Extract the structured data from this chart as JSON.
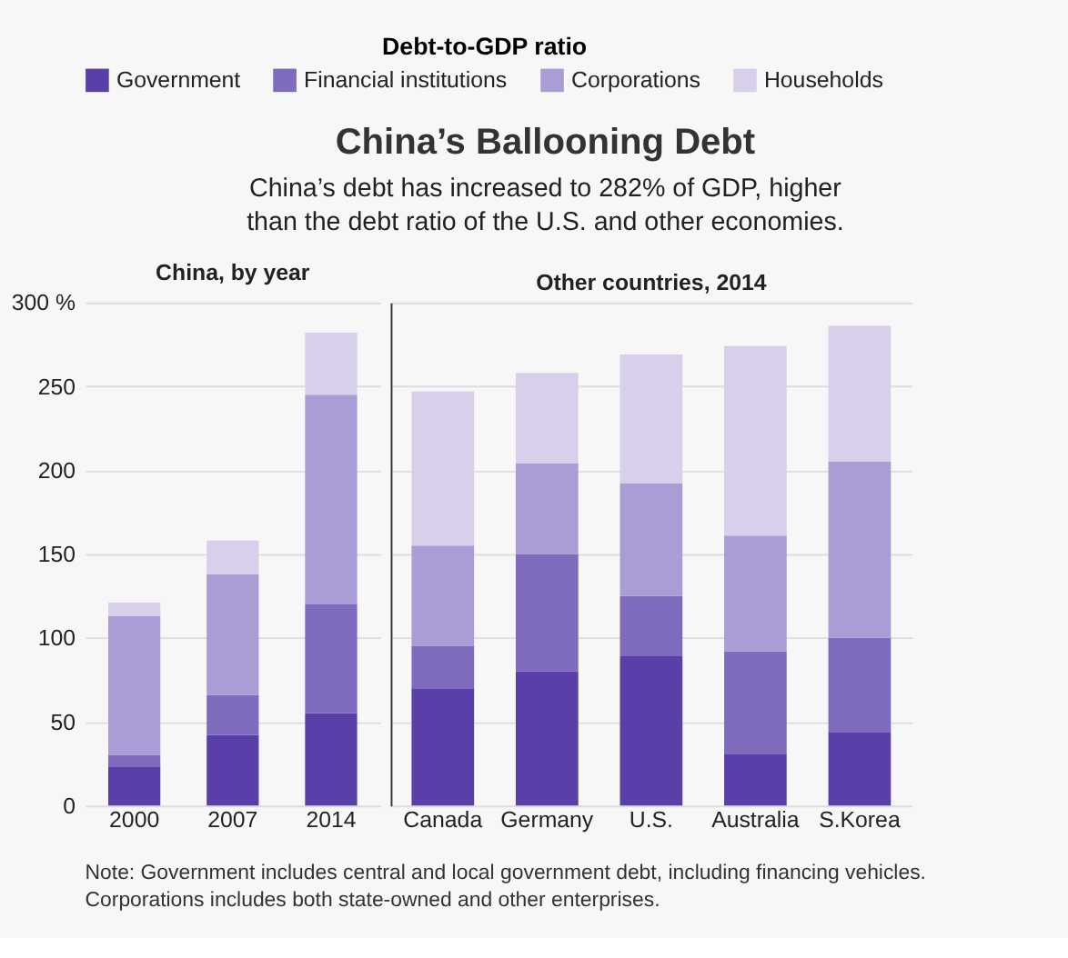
{
  "chart_data": [
    {
      "type": "other",
      "title": "China’s Ballooning Debt",
      "subtitle": "China’s debt has increased to 282% of GDP, higher than the debt ratio of the U.S. and other economies."
    },
    {
      "type": "bar",
      "legend_title": "Debt-to-GDP ratio",
      "legend": "top",
      "stacked": true,
      "grid": "y",
      "categories": [
        "2000",
        "2007",
        "2014"
      ],
      "series": [
        {
          "name": "Government",
          "color": "#5a3fa8",
          "values": [
            23,
            42,
            55
          ]
        },
        {
          "name": "Financial institutions",
          "color": "#7f6bbd",
          "values": [
            7,
            24,
            65
          ]
        },
        {
          "name": "Corporations",
          "color": "#aa9dd6",
          "values": [
            83,
            72,
            125
          ]
        },
        {
          "name": "Households",
          "color": "#d8d0eb",
          "values": [
            8,
            20,
            37
          ]
        }
      ],
      "ylim": [
        0,
        300
      ],
      "yticks": [
        0,
        50,
        100,
        150,
        200,
        250,
        {
          "value": 300,
          "label": "300 %"
        }
      ],
      "annotations": [
        "China, by year"
      ]
    },
    {
      "type": "bar",
      "stacked": true,
      "grid": "y",
      "tick_labels": "x",
      "categories": [
        "Canada",
        "Germany",
        "U.S.",
        "Australia",
        "S.Korea"
      ],
      "series": [
        {
          "color": "#5a3fa8",
          "values": [
            70,
            80,
            89,
            31,
            44
          ]
        },
        {
          "color": "#7f6bbd",
          "values": [
            25,
            70,
            36,
            61,
            56
          ]
        },
        {
          "color": "#aa9dd6",
          "values": [
            60,
            54,
            67,
            69,
            105
          ]
        },
        {
          "color": "#d8d0eb",
          "values": [
            92,
            54,
            77,
            113,
            81
          ]
        }
      ],
      "ylim": [
        0,
        300
      ],
      "yticks": [
        0,
        50,
        100,
        150,
        200,
        250,
        300
      ],
      "annotations": [
        "Other countries, 2014",
        "Note: Government includes central and local government debt, including financing vehicles.",
        "Corporations includes both state-owned and other enterprises."
      ]
    }
  ]
}
